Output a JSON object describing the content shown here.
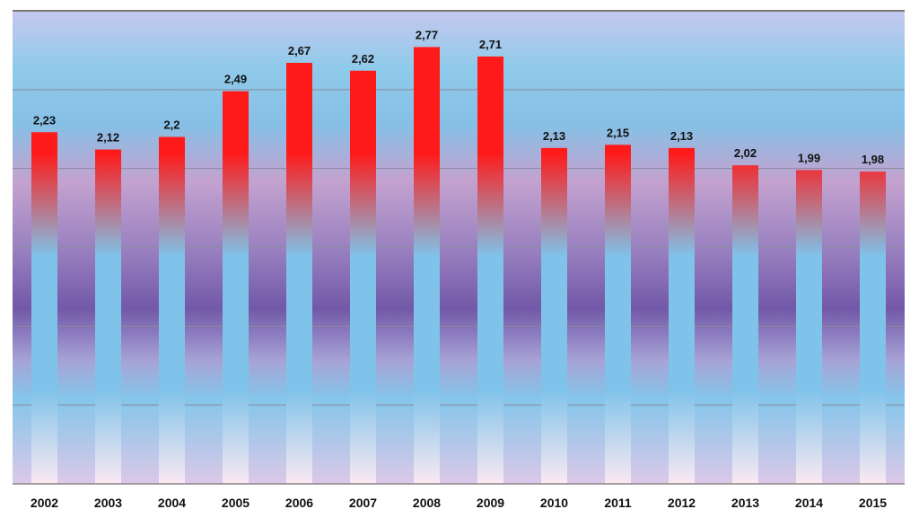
{
  "chart_data": {
    "type": "bar",
    "title": "",
    "xlabel": "",
    "ylabel": "",
    "ylim": [
      0,
      3.0
    ],
    "grid": true,
    "legend": "none",
    "categories": [
      "2002",
      "2003",
      "2004",
      "2005",
      "2006",
      "2007",
      "2008",
      "2009",
      "2010",
      "2011",
      "2012",
      "2013",
      "2014",
      "2015"
    ],
    "values": [
      2.23,
      2.12,
      2.2,
      2.49,
      2.67,
      2.62,
      2.77,
      2.71,
      2.13,
      2.15,
      2.13,
      2.02,
      1.99,
      1.98
    ],
    "value_labels": [
      "2,23",
      "2,12",
      "2,2",
      "2,49",
      "2,67",
      "2,62",
      "2,77",
      "2,71",
      "2,13",
      "2,15",
      "2,13",
      "2,02",
      "1,99",
      "1,98"
    ],
    "gridline_values": [
      0.5,
      1.0,
      1.5,
      2.0,
      2.5
    ],
    "colors": {
      "bar_top": "#ff1a1a",
      "bar_mid": "#7fc3ea",
      "bar_bottom": "#fbe9f2",
      "gridline": "#8a8aa0",
      "axis": "#888888"
    }
  }
}
